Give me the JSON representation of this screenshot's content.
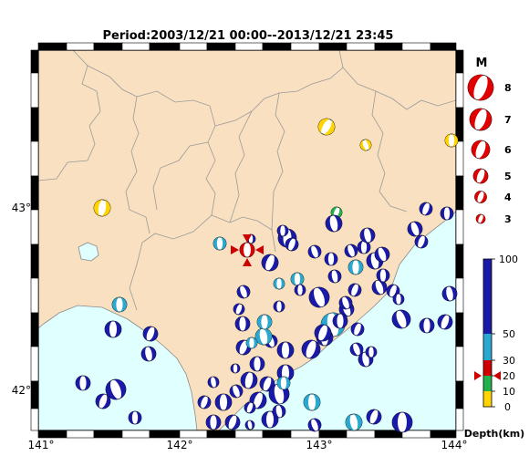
{
  "title": "Period:2003/12/21 00:00--2013/12/21 23:45",
  "axes": {
    "lon_ticks": [
      "141°",
      "142°",
      "143°",
      "144°"
    ],
    "lat_ticks": [
      "42°",
      "43°"
    ]
  },
  "legend": {
    "magnitude_heading": "M",
    "magnitudes": [
      "8",
      "7",
      "6",
      "5",
      "4",
      "3"
    ],
    "depth_unit_label": "Depth(km)",
    "depth_ticks": [
      "100",
      "50",
      "30",
      "20",
      "10",
      "0"
    ],
    "selected_depth_marker": "20",
    "depth_colors": [
      {
        "range": "0-10",
        "color": "#ffd400"
      },
      {
        "range": "10-20",
        "color": "#22b14c"
      },
      {
        "range": "20-30",
        "color": "#d00000"
      },
      {
        "range": "30-50",
        "color": "#2aa9d0"
      },
      {
        "range": "50-100",
        "color": "#1a1aa8"
      }
    ]
  },
  "colors": {
    "land": "#f9e0c0",
    "sea": "#e0ffff",
    "deep_event": "#1a1aa8",
    "mid_event": "#2aa9d0",
    "shallow_event": "#ffd400",
    "green_event": "#22b14c",
    "selected_event": "#e00000",
    "marker": "#cc0000"
  },
  "selected_event": {
    "icon": "red-triangle-marker",
    "lon": 142.5,
    "lat": 42.75
  }
}
